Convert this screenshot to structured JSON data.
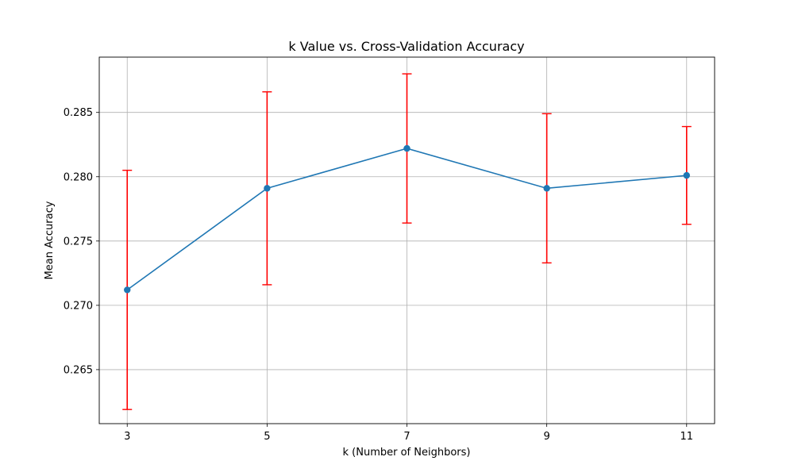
{
  "chart_data": {
    "type": "line",
    "title": "k Value vs. Cross-Validation Accuracy",
    "xlabel": "k (Number of Neighbors)",
    "ylabel": "Mean Accuracy",
    "x": [
      3,
      5,
      7,
      9,
      11
    ],
    "x_tick_labels": [
      "3",
      "5",
      "7",
      "9",
      "11"
    ],
    "y_tick_values": [
      0.265,
      0.27,
      0.275,
      0.28,
      0.285
    ],
    "y_tick_labels": [
      "0.265",
      "0.270",
      "0.275",
      "0.280",
      "0.285"
    ],
    "xlim": [
      2.6,
      11.4
    ],
    "ylim": [
      0.2608,
      0.2893
    ],
    "grid": true,
    "series": [
      {
        "values": [
          0.2712,
          0.2791,
          0.2822,
          0.2791,
          0.2801
        ],
        "errors": [
          0.0093,
          0.0075,
          0.0058,
          0.0058,
          0.0038
        ],
        "color": "#1f77b4",
        "marker": "circle"
      }
    ],
    "error_bar_color": "#ff0000"
  }
}
